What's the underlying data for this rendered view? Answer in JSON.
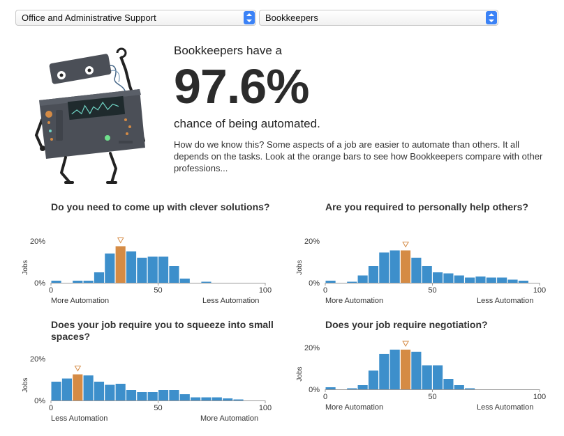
{
  "selectors": {
    "category": "Office and Administrative Support",
    "job": "Bookkeepers"
  },
  "headline": "Bookkeepers have a",
  "probability": "97.6%",
  "subheadline": "chance of being automated.",
  "explanation": "How do we know this? Some aspects of a job are easier to automate than others. It all depends on the tasks. Look at the orange bars to see how Bookkeepers compare with other professions...",
  "colors": {
    "bar": "#3d8fcb",
    "highlight": "#d58b45",
    "axis": "#999999",
    "marker": "#d58b45"
  },
  "charts": [
    {
      "title": "Do you need to come up with clever solutions?",
      "y_label": "Jobs",
      "y_ticks": [
        "20%",
        "0%"
      ],
      "x_ticks": [
        "0",
        "50",
        "100"
      ],
      "left_label": "More Automation",
      "right_label": "Less Automation"
    },
    {
      "title": "Are you required to personally help others?",
      "y_label": "Jobs",
      "y_ticks": [
        "20%",
        "0%"
      ],
      "x_ticks": [
        "0",
        "50",
        "100"
      ],
      "left_label": "More Automation",
      "right_label": "Less Automation"
    },
    {
      "title": "Does your job require you to squeeze into small spaces?",
      "y_label": "Jobs",
      "y_ticks": [
        "20%",
        "0%"
      ],
      "x_ticks": [
        "0",
        "50",
        "100"
      ],
      "left_label": "Less Automation",
      "right_label": "More Automation"
    },
    {
      "title": "Does your job require negotiation?",
      "y_label": "Jobs",
      "y_ticks": [
        "20%",
        "0%"
      ],
      "x_ticks": [
        "0",
        "50",
        "100"
      ],
      "left_label": "More Automation",
      "right_label": "Less Automation"
    }
  ],
  "chart_data": [
    {
      "type": "bar",
      "title": "Do you need to come up with clever solutions?",
      "ylabel": "Jobs",
      "xlim": [
        0,
        100
      ],
      "ylim": [
        0,
        20
      ],
      "bin_width": 5,
      "x": [
        0,
        5,
        10,
        15,
        20,
        25,
        30,
        35,
        40,
        45,
        50,
        55,
        60,
        65,
        70,
        75,
        80,
        85,
        90,
        95
      ],
      "values": [
        1,
        0,
        1,
        1,
        5,
        14,
        17.5,
        15,
        12,
        12.5,
        12.5,
        8,
        2,
        0,
        0.5,
        0,
        0,
        0,
        0,
        0
      ],
      "highlight_index": 6
    },
    {
      "type": "bar",
      "title": "Are you required to personally help others?",
      "ylabel": "Jobs",
      "xlim": [
        0,
        100
      ],
      "ylim": [
        0,
        20
      ],
      "bin_width": 5,
      "x": [
        0,
        5,
        10,
        15,
        20,
        25,
        30,
        35,
        40,
        45,
        50,
        55,
        60,
        65,
        70,
        75,
        80,
        85,
        90,
        95
      ],
      "values": [
        1,
        0,
        0.5,
        3.5,
        8,
        14.5,
        15.5,
        15.5,
        12,
        8,
        5,
        4.5,
        3.5,
        2.5,
        3,
        2.5,
        2.5,
        1.5,
        1,
        0
      ],
      "highlight_index": 7
    },
    {
      "type": "bar",
      "title": "Does your job require you to squeeze into small spaces?",
      "ylabel": "Jobs",
      "xlim": [
        0,
        100
      ],
      "ylim": [
        0,
        20
      ],
      "bin_width": 5,
      "x": [
        0,
        5,
        10,
        15,
        20,
        25,
        30,
        35,
        40,
        45,
        50,
        55,
        60,
        65,
        70,
        75,
        80,
        85,
        90,
        95
      ],
      "values": [
        9,
        10.5,
        12.5,
        12,
        9,
        7.5,
        8,
        5,
        4,
        4,
        5,
        5,
        3,
        1.5,
        1.5,
        1.5,
        1,
        0.5,
        0,
        0
      ],
      "highlight_index": 2
    },
    {
      "type": "bar",
      "title": "Does your job require negotiation?",
      "ylabel": "Jobs",
      "xlim": [
        0,
        100
      ],
      "ylim": [
        0,
        20
      ],
      "bin_width": 5,
      "x": [
        0,
        5,
        10,
        15,
        20,
        25,
        30,
        35,
        40,
        45,
        50,
        55,
        60,
        65,
        70,
        75,
        80,
        85,
        90,
        95
      ],
      "values": [
        1,
        0,
        0.5,
        2,
        9,
        17,
        19,
        19,
        18,
        11.5,
        11.5,
        5,
        2,
        0.5,
        0,
        0,
        0,
        0,
        0,
        0
      ],
      "highlight_index": 7
    }
  ]
}
